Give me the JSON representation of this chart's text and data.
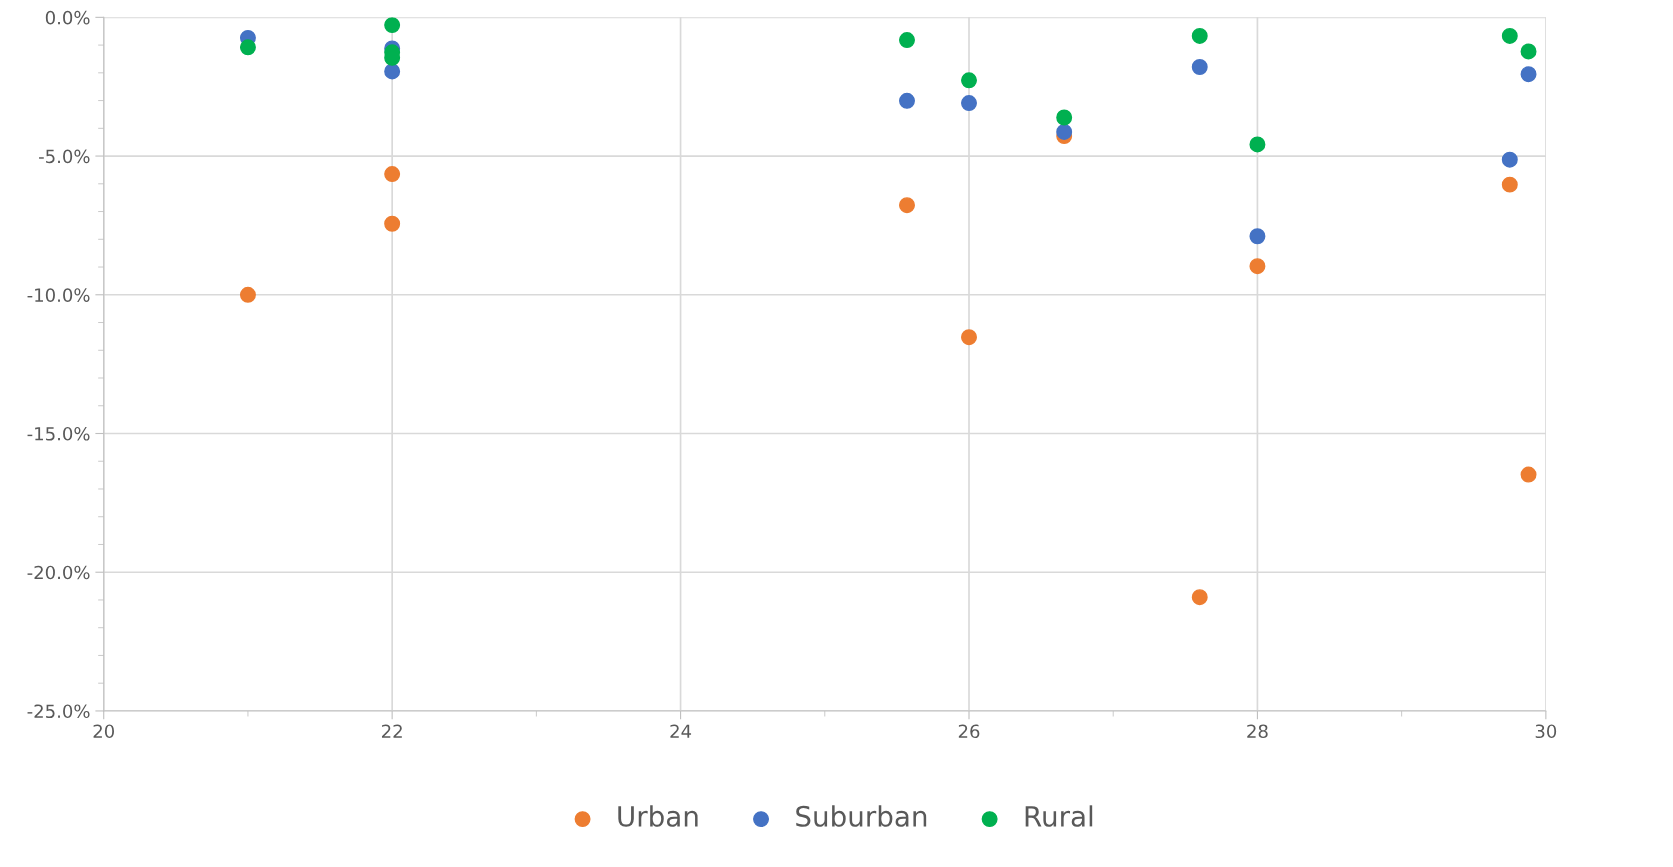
{
  "chart_data": {
    "type": "scatter",
    "marker": "circle",
    "grid": true,
    "legend": "bottom",
    "xlim": [
      20,
      30
    ],
    "xticks": [
      20,
      22,
      24,
      26,
      28,
      30
    ],
    "ylim": [
      -25,
      0
    ],
    "yticks": [
      {
        "value": -25,
        "label": "-25.0%"
      },
      {
        "value": -20,
        "label": "-20.0%"
      },
      {
        "value": -15,
        "label": "-15.0%"
      },
      {
        "value": -10,
        "label": "-10.0%"
      },
      {
        "value": -5,
        "label": "-5.0%"
      },
      {
        "value": 0,
        "label": "0.0%"
      }
    ],
    "series": [
      {
        "name": "Urban",
        "color": "#ed7d31",
        "x": [
          21,
          22,
          22,
          25.57,
          26,
          26.66,
          27.6,
          28,
          29.75,
          29.88
        ],
        "values": [
          -10.0,
          -5.65,
          -7.44,
          -6.77,
          -11.53,
          -4.28,
          -20.9,
          -8.97,
          -6.03,
          -16.48
        ]
      },
      {
        "name": "Suburban",
        "color": "#4472c4",
        "x": [
          21,
          22,
          22,
          25.57,
          26,
          26.66,
          27.6,
          28,
          29.75,
          29.88
        ],
        "values": [
          -0.74,
          -1.12,
          -1.95,
          -3.01,
          -3.09,
          -4.13,
          -1.79,
          -7.89,
          -5.13,
          -2.05
        ]
      },
      {
        "name": "Rural",
        "color": "#00b050",
        "x": [
          21,
          22,
          22,
          22,
          25.57,
          26,
          26.66,
          27.6,
          28,
          29.75,
          29.88
        ],
        "values": [
          -1.08,
          -0.28,
          -1.26,
          -1.46,
          -0.82,
          -2.27,
          -3.61,
          -0.67,
          -4.58,
          -0.67,
          -1.23
        ]
      }
    ]
  }
}
